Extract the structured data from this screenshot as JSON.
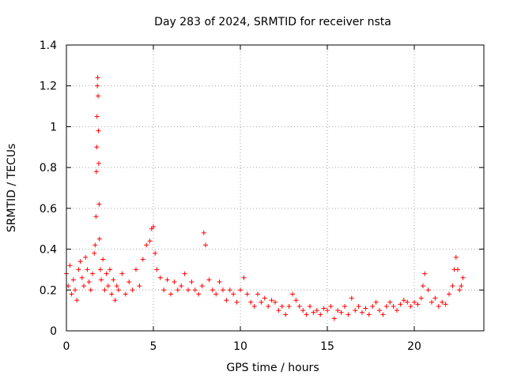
{
  "chart_data": {
    "type": "scatter",
    "title": "Day 283 of 2024, SRMTID for receiver nsta",
    "xlabel": "GPS time / hours",
    "ylabel": "SRMTID / TECUs",
    "xlim": [
      0,
      24
    ],
    "ylim": [
      0,
      1.4
    ],
    "xticks": [
      0,
      5,
      10,
      15,
      20
    ],
    "xtick_labels": [
      "0",
      "5",
      "10",
      "15",
      "20"
    ],
    "yticks": [
      0,
      0.2,
      0.4,
      0.6,
      0.8,
      1.0,
      1.2,
      1.4
    ],
    "ytick_labels": [
      "0",
      "0.2",
      "0.4",
      "0.6",
      "0.8",
      "1",
      "1.2",
      "1.4"
    ],
    "grid": true,
    "marker": "+",
    "color": "#ff0000",
    "series": [
      {
        "name": "nsta",
        "x": [
          0.0,
          0.1,
          0.2,
          0.3,
          0.4,
          0.5,
          0.6,
          0.7,
          0.8,
          0.9,
          1.0,
          1.1,
          1.2,
          1.3,
          1.4,
          1.5,
          1.6,
          1.65,
          1.7,
          1.72,
          1.74,
          1.76,
          1.78,
          1.8,
          1.82,
          1.84,
          1.86,
          1.88,
          1.9,
          1.95,
          2.0,
          2.1,
          2.2,
          2.3,
          2.4,
          2.5,
          2.6,
          2.7,
          2.8,
          2.9,
          3.0,
          3.2,
          3.4,
          3.6,
          3.8,
          4.0,
          4.2,
          4.4,
          4.6,
          4.8,
          4.9,
          5.0,
          5.1,
          5.2,
          5.4,
          5.6,
          5.8,
          6.0,
          6.2,
          6.4,
          6.6,
          6.8,
          7.0,
          7.2,
          7.4,
          7.6,
          7.8,
          7.9,
          8.0,
          8.2,
          8.4,
          8.6,
          8.8,
          9.0,
          9.2,
          9.4,
          9.6,
          9.8,
          10.0,
          10.2,
          10.4,
          10.6,
          10.8,
          11.0,
          11.2,
          11.4,
          11.6,
          11.8,
          12.0,
          12.2,
          12.4,
          12.6,
          12.8,
          13.0,
          13.2,
          13.4,
          13.6,
          13.8,
          14.0,
          14.2,
          14.4,
          14.6,
          14.8,
          15.0,
          15.2,
          15.4,
          15.6,
          15.8,
          16.0,
          16.2,
          16.4,
          16.6,
          16.8,
          17.0,
          17.2,
          17.4,
          17.6,
          17.8,
          18.0,
          18.2,
          18.4,
          18.6,
          18.8,
          19.0,
          19.2,
          19.4,
          19.6,
          19.8,
          20.0,
          20.2,
          20.4,
          20.5,
          20.6,
          20.8,
          21.0,
          21.2,
          21.4,
          21.6,
          21.8,
          22.0,
          22.2,
          22.3,
          22.4,
          22.5,
          22.6,
          22.7,
          22.8
        ],
        "y": [
          0.28,
          0.22,
          0.32,
          0.18,
          0.25,
          0.2,
          0.15,
          0.3,
          0.34,
          0.26,
          0.22,
          0.36,
          0.3,
          0.24,
          0.2,
          0.28,
          0.38,
          0.42,
          0.56,
          0.78,
          0.9,
          1.05,
          1.2,
          1.24,
          1.15,
          0.98,
          0.82,
          0.62,
          0.45,
          0.3,
          0.25,
          0.35,
          0.2,
          0.28,
          0.22,
          0.3,
          0.18,
          0.25,
          0.15,
          0.22,
          0.2,
          0.28,
          0.18,
          0.24,
          0.2,
          0.3,
          0.22,
          0.35,
          0.42,
          0.44,
          0.5,
          0.51,
          0.38,
          0.3,
          0.26,
          0.2,
          0.25,
          0.18,
          0.24,
          0.2,
          0.22,
          0.28,
          0.2,
          0.24,
          0.2,
          0.18,
          0.22,
          0.48,
          0.42,
          0.25,
          0.2,
          0.18,
          0.24,
          0.2,
          0.15,
          0.2,
          0.18,
          0.14,
          0.2,
          0.26,
          0.18,
          0.14,
          0.12,
          0.18,
          0.14,
          0.16,
          0.12,
          0.15,
          0.14,
          0.1,
          0.12,
          0.08,
          0.12,
          0.18,
          0.15,
          0.12,
          0.1,
          0.08,
          0.12,
          0.09,
          0.1,
          0.08,
          0.11,
          0.1,
          0.12,
          0.06,
          0.1,
          0.09,
          0.12,
          0.08,
          0.16,
          0.1,
          0.12,
          0.09,
          0.11,
          0.08,
          0.12,
          0.14,
          0.1,
          0.08,
          0.12,
          0.14,
          0.12,
          0.1,
          0.13,
          0.15,
          0.14,
          0.12,
          0.14,
          0.13,
          0.16,
          0.22,
          0.28,
          0.2,
          0.14,
          0.16,
          0.12,
          0.14,
          0.13,
          0.18,
          0.22,
          0.3,
          0.36,
          0.3,
          0.2,
          0.22,
          0.26
        ]
      }
    ]
  }
}
